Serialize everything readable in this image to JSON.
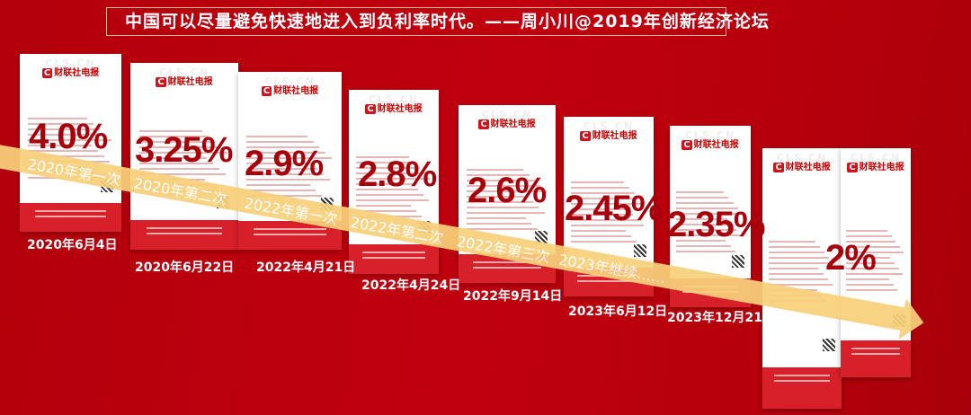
{
  "title": "中国可以尽量避免快速地进入到负利率时代。——周小川@2019年创新经济论坛",
  "card_logo": "财联社电报",
  "card_watermark": "CLS.CN",
  "cards": [
    {
      "rate": "4.0%",
      "date": "2020年6月4日"
    },
    {
      "rate": "3.25%",
      "date": "2020年6月22日"
    },
    {
      "rate": "2.9%",
      "date": "2022年4月21日"
    },
    {
      "rate": "2.8%",
      "date": "2022年4月24日"
    },
    {
      "rate": "2.6%",
      "date": "2022年9月14日"
    },
    {
      "rate": "2.45%",
      "date": "2023年6月12日"
    },
    {
      "rate": "2.35%",
      "date": "2023年12月21日"
    },
    {
      "rate": "2%",
      "date": ""
    }
  ],
  "ribbon_labels": [
    "2020年第一次",
    "2020年第二次",
    "2022年第一次",
    "2022年第二次",
    "2022年第三次",
    "2023年继续……"
  ],
  "colors": {
    "background": "#b8000d",
    "ribbon": "#f8d07a",
    "rate_text": "#a8000a"
  }
}
